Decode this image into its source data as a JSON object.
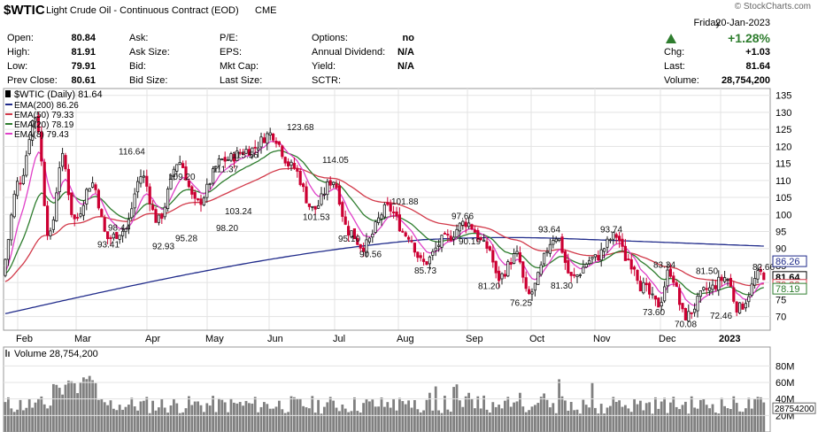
{
  "header": {
    "symbol": "$WTIC",
    "name": "Light Crude Oil - Continuous Contract (EOD)",
    "exchange": "CME",
    "brand": "© StockCharts.com",
    "day": "Friday",
    "date": "20-Jan-2023",
    "change_pct": "+1.28%",
    "quote_rows": [
      [
        {
          "label": "Open:",
          "value": "80.84"
        },
        {
          "label": "Ask:",
          "value": ""
        },
        {
          "label": "P/E:",
          "value": ""
        },
        {
          "label": "Options:",
          "value": "no"
        }
      ],
      [
        {
          "label": "High:",
          "value": "81.91"
        },
        {
          "label": "Ask Size:",
          "value": ""
        },
        {
          "label": "EPS:",
          "value": ""
        },
        {
          "label": "Annual Dividend:",
          "value": "N/A"
        }
      ],
      [
        {
          "label": "Low:",
          "value": "79.91"
        },
        {
          "label": "Bid:",
          "value": ""
        },
        {
          "label": "Mkt Cap:",
          "value": ""
        },
        {
          "label": "Yield:",
          "value": "N/A"
        }
      ],
      [
        {
          "label": "Prev Close:",
          "value": "80.61"
        },
        {
          "label": "Bid Size:",
          "value": ""
        },
        {
          "label": "Last Size:",
          "value": ""
        },
        {
          "label": "SCTR:",
          "value": ""
        }
      ]
    ],
    "summary": [
      {
        "label": "Chg:",
        "value": "+1.03"
      },
      {
        "label": "Last:",
        "value": "81.64"
      },
      {
        "label": "Volume:",
        "value": "28,754,200"
      }
    ]
  },
  "colors": {
    "up": "#1a1a1a",
    "down": "#cc0033",
    "ema200": "#1f2a8a",
    "ema50": "#d23a4a",
    "ema20": "#2e7d2e",
    "ema8": "#e040c8",
    "volume": "#808080",
    "grid": "#e3e3e3",
    "change_arrow": "#2e7d2e"
  },
  "chart_data": [
    {
      "type": "candlestick",
      "title": "$WTIC (Daily) 81.64",
      "legend": [
        {
          "name": "EMA(200) 86.26",
          "color": "#1f2a8a"
        },
        {
          "name": "EMA(50) 79.33",
          "color": "#d23a4a"
        },
        {
          "name": "EMA(20) 78.19",
          "color": "#2e7d2e"
        },
        {
          "name": "EMA(8) 79.43",
          "color": "#e040c8"
        }
      ],
      "legend_position": "top-left",
      "x_ticks": [
        "Feb",
        "Mar",
        "Apr",
        "May",
        "Jun",
        "Jul",
        "Aug",
        "Sep",
        "Oct",
        "Nov",
        "Dec",
        "2023"
      ],
      "y_ticks": [
        70,
        75,
        80,
        85,
        90,
        95,
        100,
        105,
        110,
        115,
        120,
        125,
        130,
        135
      ],
      "ylim": [
        66,
        137
      ],
      "grid": true,
      "annotations": [
        {
          "label": "116.64",
          "value": 116.64,
          "side": "high"
        },
        {
          "label": "98.44",
          "value": 98.44,
          "side": "low"
        },
        {
          "label": "93.41",
          "value": 93.41,
          "side": "low"
        },
        {
          "label": "109.20",
          "value": 109.2,
          "side": "high"
        },
        {
          "label": "92.93",
          "value": 92.93,
          "side": "low"
        },
        {
          "label": "95.28",
          "value": 95.28,
          "side": "low"
        },
        {
          "label": "111.37",
          "value": 111.37,
          "side": "high"
        },
        {
          "label": "98.20",
          "value": 98.2,
          "side": "low"
        },
        {
          "label": "115.56",
          "value": 115.56,
          "side": "high"
        },
        {
          "label": "103.24",
          "value": 103.24,
          "side": "low"
        },
        {
          "label": "123.68",
          "value": 123.68,
          "side": "high"
        },
        {
          "label": "114.05",
          "value": 114.05,
          "side": "high"
        },
        {
          "label": "101.53",
          "value": 101.53,
          "side": "low"
        },
        {
          "label": "95.10",
          "value": 95.1,
          "side": "low"
        },
        {
          "label": "90.56",
          "value": 90.56,
          "side": "low"
        },
        {
          "label": "101.88",
          "value": 101.88,
          "side": "high"
        },
        {
          "label": "85.73",
          "value": 85.73,
          "side": "low"
        },
        {
          "label": "97.66",
          "value": 97.66,
          "side": "high"
        },
        {
          "label": "90.19",
          "value": 90.19,
          "side": "high"
        },
        {
          "label": "81.20",
          "value": 81.2,
          "side": "low"
        },
        {
          "label": "76.25",
          "value": 76.25,
          "side": "low"
        },
        {
          "label": "93.64",
          "value": 93.64,
          "side": "high"
        },
        {
          "label": "81.30",
          "value": 81.3,
          "side": "low"
        },
        {
          "label": "93.74",
          "value": 93.74,
          "side": "high"
        },
        {
          "label": "83.34",
          "value": 83.34,
          "side": "high"
        },
        {
          "label": "73.60",
          "value": 73.6,
          "side": "low"
        },
        {
          "label": "70.08",
          "value": 70.08,
          "side": "low"
        },
        {
          "label": "81.50",
          "value": 81.5,
          "side": "high"
        },
        {
          "label": "72.46",
          "value": 72.46,
          "side": "low"
        },
        {
          "label": "82.66",
          "value": 82.66,
          "side": "high"
        }
      ],
      "last_value_tags": [
        {
          "label": "86.26",
          "value": 86.26,
          "color": "#1f2a8a"
        },
        {
          "label": "81.64",
          "value": 81.64,
          "color": "#000000"
        },
        {
          "label": "79.33",
          "value": 79.33,
          "color": "#d23a4a"
        },
        {
          "label": "78.19",
          "value": 78.19,
          "color": "#2e7d2e"
        }
      ]
    },
    {
      "type": "bar",
      "title": "Volume 28,754,200",
      "y_ticks": [
        "80M",
        "60M",
        "40M",
        "20M"
      ],
      "y_tick_values": [
        80,
        60,
        40,
        20
      ],
      "last_value_tag": {
        "label": "28754200",
        "value": 28.75
      },
      "ylim": [
        0,
        90
      ],
      "unit": "M"
    }
  ]
}
